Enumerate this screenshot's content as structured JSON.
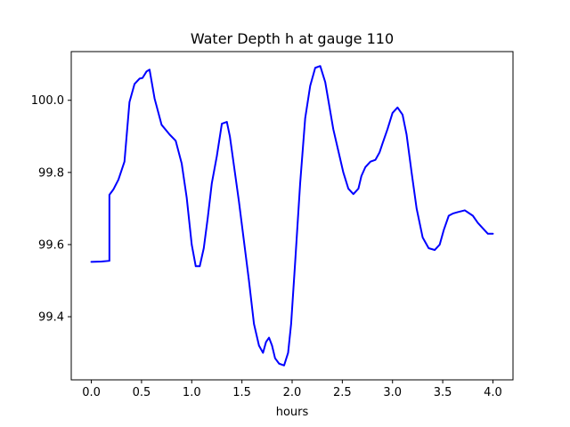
{
  "chart_data": {
    "type": "line",
    "title": "Water Depth h at gauge 110",
    "xlabel": "hours",
    "ylabel": "",
    "xlim": [
      -0.2,
      4.2
    ],
    "ylim": [
      99.225,
      100.135
    ],
    "xticks": [
      0.0,
      0.5,
      1.0,
      1.5,
      2.0,
      2.5,
      3.0,
      3.5,
      4.0
    ],
    "xtick_labels": [
      "0.0",
      "0.5",
      "1.0",
      "1.5",
      "2.0",
      "2.5",
      "3.0",
      "3.5",
      "4.0"
    ],
    "yticks": [
      99.4,
      99.6,
      99.8,
      100.0
    ],
    "ytick_labels": [
      "99.4",
      "99.6",
      "99.8",
      "100.0"
    ],
    "grid": false,
    "series": [
      {
        "color": "#0000ff",
        "x": [
          0.0,
          0.1,
          0.18,
          0.18,
          0.22,
          0.27,
          0.33,
          0.38,
          0.43,
          0.48,
          0.51,
          0.55,
          0.58,
          0.63,
          0.7,
          0.78,
          0.84,
          0.9,
          0.95,
          1.0,
          1.04,
          1.08,
          1.12,
          1.16,
          1.2,
          1.25,
          1.3,
          1.35,
          1.38,
          1.42,
          1.47,
          1.52,
          1.57,
          1.62,
          1.67,
          1.71,
          1.74,
          1.77,
          1.8,
          1.83,
          1.87,
          1.92,
          1.96,
          1.99,
          2.03,
          2.08,
          2.13,
          2.18,
          2.23,
          2.28,
          2.33,
          2.37,
          2.41,
          2.46,
          2.51,
          2.56,
          2.61,
          2.66,
          2.69,
          2.73,
          2.78,
          2.83,
          2.87,
          2.9,
          2.95,
          3.0,
          3.05,
          3.1,
          3.14,
          3.19,
          3.24,
          3.3,
          3.36,
          3.42,
          3.47,
          3.51,
          3.56,
          3.6,
          3.65,
          3.72,
          3.8,
          3.85,
          3.9,
          3.95,
          4.0
        ],
        "y": [
          99.552,
          99.553,
          99.555,
          99.738,
          99.753,
          99.78,
          99.83,
          99.995,
          100.045,
          100.06,
          100.062,
          100.08,
          100.085,
          100.005,
          99.932,
          99.905,
          99.888,
          99.825,
          99.73,
          99.6,
          99.54,
          99.54,
          99.59,
          99.675,
          99.77,
          99.845,
          99.935,
          99.94,
          99.9,
          99.82,
          99.72,
          99.61,
          99.5,
          99.38,
          99.32,
          99.3,
          99.33,
          99.342,
          99.32,
          99.285,
          99.27,
          99.265,
          99.3,
          99.38,
          99.55,
          99.77,
          99.95,
          100.04,
          100.09,
          100.095,
          100.05,
          99.985,
          99.92,
          99.86,
          99.8,
          99.755,
          99.74,
          99.755,
          99.79,
          99.815,
          99.83,
          99.835,
          99.855,
          99.88,
          99.92,
          99.965,
          99.98,
          99.96,
          99.905,
          99.8,
          99.7,
          99.62,
          99.59,
          99.585,
          99.6,
          99.64,
          99.68,
          99.686,
          99.69,
          99.695,
          99.68,
          99.66,
          99.645,
          99.63,
          99.63
        ]
      }
    ]
  }
}
